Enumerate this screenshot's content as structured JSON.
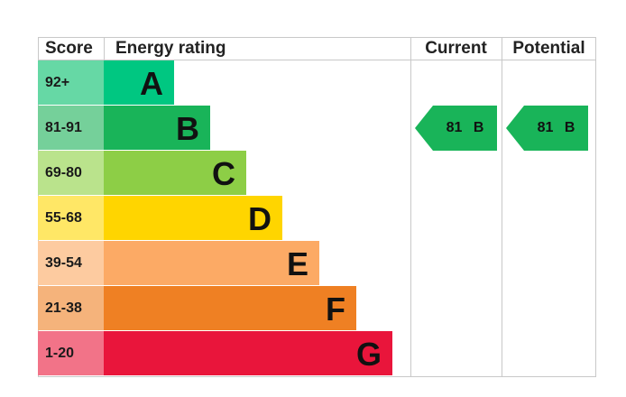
{
  "chart_data": {
    "type": "bar",
    "headers": {
      "score": "Score",
      "rating": "Energy rating",
      "current": "Current",
      "potential": "Potential"
    },
    "bands": [
      {
        "score": "92+",
        "letter": "A",
        "bar_color": "#00c781",
        "score_color": "#66d8a5"
      },
      {
        "score": "81-91",
        "letter": "B",
        "bar_color": "#19b459",
        "score_color": "#75d09a"
      },
      {
        "score": "69-80",
        "letter": "C",
        "bar_color": "#8dce46",
        "score_color": "#bae38c"
      },
      {
        "score": "55-68",
        "letter": "D",
        "bar_color": "#ffd500",
        "score_color": "#ffe766"
      },
      {
        "score": "39-54",
        "letter": "E",
        "bar_color": "#fcaa65",
        "score_color": "#fdcba0"
      },
      {
        "score": "21-38",
        "letter": "F",
        "bar_color": "#ef8023",
        "score_color": "#f5b37b"
      },
      {
        "score": "1-20",
        "letter": "G",
        "bar_color": "#e9153b",
        "score_color": "#f27388"
      }
    ],
    "current": {
      "value": 81,
      "letter": "B",
      "label": "81  B",
      "color": "#19b459"
    },
    "potential": {
      "value": 81,
      "letter": "B",
      "label": "81  B",
      "color": "#19b459"
    }
  }
}
